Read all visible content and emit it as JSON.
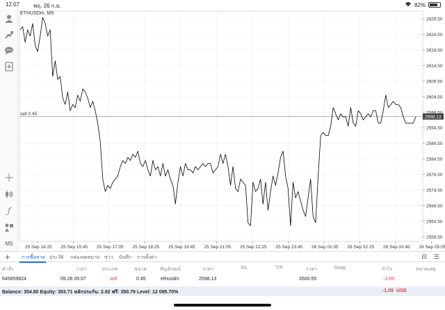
{
  "status_bar": {
    "time": "12:07",
    "date": "พฤ. 26 ก.ย.",
    "battery": "82%",
    "battery_level": 0.82
  },
  "chart": {
    "title": "ETHUSDm, M5",
    "sell_line_label": "sell 0.45",
    "current_price": "2598.13",
    "y_ticks": [
      "2629.50",
      "2624.50",
      "2619.50",
      "2614.50",
      "2609.50",
      "2604.50",
      "2599.50",
      "2594.50",
      "2589.50",
      "2584.50",
      "2579.50",
      "2574.50",
      "2569.50",
      "2564.50",
      "2559.50"
    ],
    "x_ticks": [
      "25 Sep 14:25",
      "25 Sep 15:45",
      "25 Sep 17:05",
      "25 Sep 18:25",
      "25 Sep 19:45",
      "25 Sep 21:05",
      "25 Sep 22:25",
      "25 Sep 23:45",
      "26 Sep 01:05",
      "26 Sep 02:25",
      "26 Sep 03:45",
      "26 Sep 05:05"
    ],
    "colors": {
      "line": "#000000",
      "sell_line": "#9a9a9a",
      "price_tag": "#444444"
    }
  },
  "chart_data": {
    "type": "line",
    "title": "ETHUSDm, M5",
    "xlabel": "",
    "ylabel": "",
    "ylim": [
      2558,
      2632
    ],
    "grid": true,
    "sell_level": 2598.13,
    "series": [
      {
        "values": [
          2626,
          2627,
          2622,
          2626,
          2624,
          2628,
          2621,
          2619,
          2624,
          2630,
          2628,
          2624,
          2626,
          2611,
          2616,
          2610,
          2611,
          2604,
          2602,
          2606,
          2600,
          2602,
          2601,
          2605,
          2603,
          2607,
          2606,
          2604,
          2601,
          2603,
          2600,
          2596,
          2590,
          2578,
          2574,
          2576,
          2575,
          2577,
          2578,
          2579,
          2582,
          2584,
          2583,
          2585,
          2584,
          2586,
          2585,
          2587,
          2583,
          2582,
          2584,
          2581,
          2579,
          2584,
          2581,
          2582,
          2579,
          2583,
          2579,
          2581,
          2578,
          2576,
          2570,
          2577,
          2582,
          2579,
          2583,
          2581,
          2581,
          2580,
          2582,
          2581,
          2582,
          2583,
          2582,
          2583,
          2583,
          2580,
          2581,
          2582,
          2586,
          2583,
          2586,
          2582,
          2576,
          2582,
          2575,
          2574,
          2578,
          2577,
          2576,
          2564,
          2563,
          2577,
          2574,
          2575,
          2578,
          2570,
          2577,
          2568,
          2574,
          2579,
          2576,
          2580,
          2585,
          2587,
          2579,
          2575,
          2563,
          2577,
          2572,
          2574,
          2571,
          2568,
          2566,
          2572,
          2578,
          2566,
          2564,
          2579,
          2592,
          2593,
          2592,
          2592,
          2595,
          2601,
          2599,
          2597,
          2599,
          2598,
          2598,
          2595,
          2601,
          2596,
          2595,
          2600,
          2599,
          2597,
          2598,
          2599,
          2598,
          2600,
          2600,
          2596,
          2596,
          2600,
          2605,
          2601,
          2602,
          2603,
          2602,
          2602,
          2601,
          2598,
          2596,
          2596,
          2596,
          2596,
          2598
        ]
      }
    ]
  },
  "toolbar": {
    "tools": [
      "person-icon",
      "trend-icon",
      "chat-icon",
      "add-indicator-icon",
      "crosshair-icon",
      "candles-icon",
      "function-icon",
      "objects-icon"
    ],
    "timeframe": "M5"
  },
  "tabs": {
    "items": [
      "การซื้อขาย",
      "ประวัติ",
      "กล่องจดหมาย",
      "ข่าว",
      "บันทึก",
      "การตั้งค่า"
    ],
    "active": 0
  },
  "table": {
    "headers": [
      "คำสั่ง",
      "เวลา",
      "ประเภท",
      "ขนาด",
      "สัญลักษณ์",
      "ราคา",
      "S/L",
      "T/P",
      "ราคา",
      "Swap",
      "กำไร",
      "หมายเหตุ"
    ],
    "row": {
      "order": "645859824",
      "time": "09.26 05:07",
      "type": "sell",
      "size": "0.45",
      "symbol": "ethusdm",
      "price": "2598.13",
      "current_price": "2600.55",
      "profit": "-1.09"
    }
  },
  "balance": {
    "text": "Balance: 354.80 Equity: 353.71 หลักประกัน: 2.92 ฟรี: 350.79 Level: 12 095.70%",
    "profit": "-1.09",
    "currency": "USD"
  }
}
